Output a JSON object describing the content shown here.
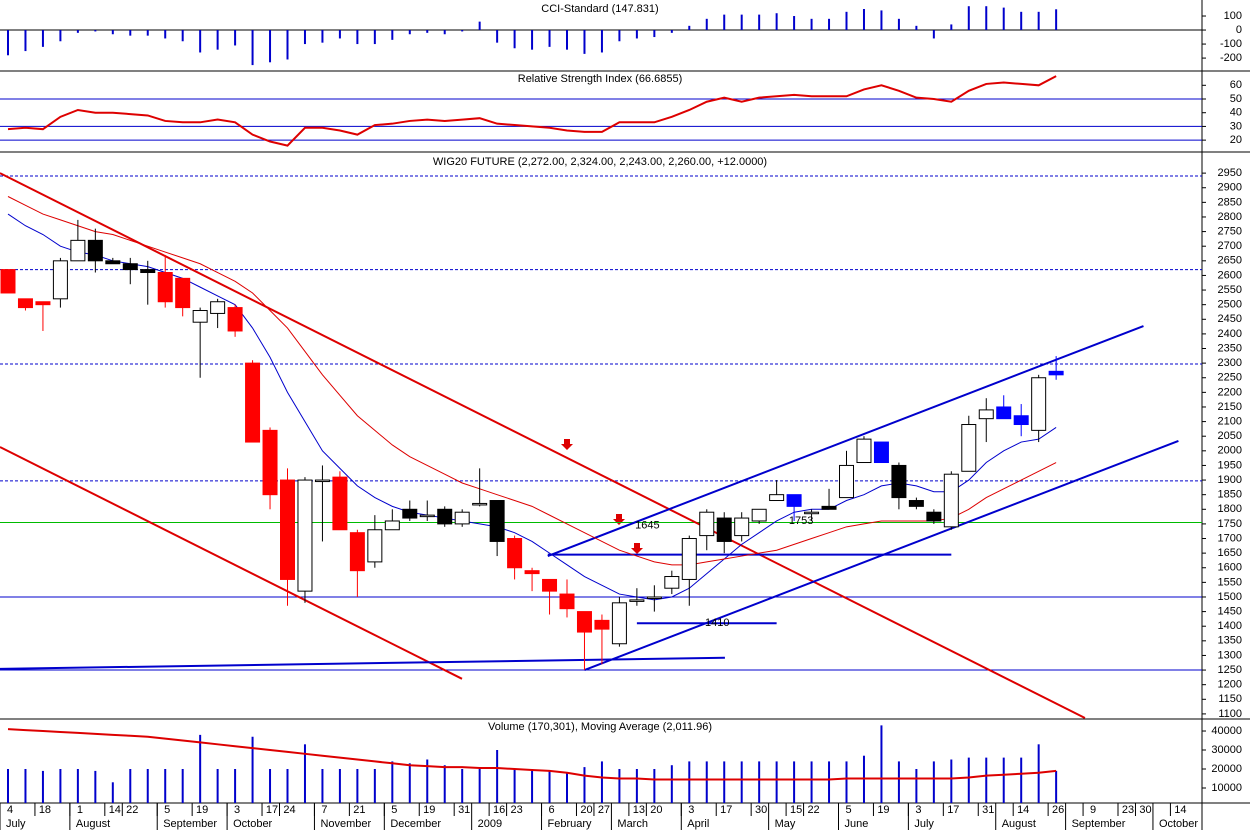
{
  "chart_data": [
    {
      "type": "bar",
      "title": "CCI-Standard (147.831)",
      "color": "#0000cc",
      "ylim": [
        -285,
        200
      ],
      "yticks": [
        100,
        0,
        -100,
        -200
      ],
      "hlines": [
        {
          "value": 0,
          "color": "#000000"
        }
      ],
      "values": [
        -180,
        -150,
        -120,
        -80,
        -20,
        -10,
        -30,
        -40,
        -40,
        -60,
        -80,
        -160,
        -140,
        -110,
        -250,
        -230,
        -210,
        -100,
        -90,
        -60,
        -100,
        -100,
        -70,
        -30,
        -20,
        -30,
        -10,
        60,
        -90,
        -130,
        -140,
        -120,
        -140,
        -170,
        -160,
        -80,
        -60,
        -50,
        -20,
        30,
        80,
        110,
        110,
        110,
        120,
        100,
        80,
        80,
        130,
        150,
        140,
        80,
        30,
        -60,
        40,
        170,
        170,
        160,
        130,
        130,
        148
      ]
    },
    {
      "type": "line",
      "title": "Relative Strength Index (66.6855)",
      "color": "#dd0000",
      "ylim": [
        12.8,
        69.7
      ],
      "yticks": [
        60,
        50,
        40,
        30,
        20
      ],
      "hlines": [
        {
          "value": 50,
          "color": "#0000cc"
        },
        {
          "value": 30,
          "color": "#0000cc"
        },
        {
          "value": 20,
          "color": "#0000cc"
        }
      ],
      "values": [
        28,
        29,
        28,
        37,
        42,
        40,
        40,
        39,
        38,
        34,
        33,
        33,
        35,
        33,
        24,
        19,
        16,
        29,
        29,
        27,
        24,
        31,
        32,
        34,
        35,
        34,
        35,
        36,
        32,
        31,
        30,
        29,
        27,
        26,
        26,
        33,
        33,
        33,
        37,
        42,
        48,
        51,
        48,
        51,
        52,
        53,
        52,
        52,
        52,
        57,
        60,
        56,
        51,
        50,
        48,
        56,
        61,
        62,
        61,
        60,
        66.7
      ]
    },
    {
      "type": "candlestick",
      "title": "WIG20 FUTURE (2,272.00, 2,324.00, 2,243.00, 2,260.00, +12.0000)",
      "xlim": [
        -0.458,
        68.35
      ],
      "xticks": [
        {
          "value": 0,
          "label": "4"
        },
        {
          "value": 2,
          "label": "18"
        },
        {
          "value": 4,
          "label": "1"
        },
        {
          "value": 6,
          "label": "14"
        },
        {
          "value": 7,
          "label": "22"
        },
        {
          "value": 9,
          "label": "5"
        },
        {
          "value": 11,
          "label": "19"
        },
        {
          "value": 13,
          "label": "3"
        },
        {
          "value": 15,
          "label": "17"
        },
        {
          "value": 16,
          "label": "24"
        },
        {
          "value": 18,
          "label": "7"
        },
        {
          "value": 20,
          "label": "21"
        },
        {
          "value": 22,
          "label": "5"
        },
        {
          "value": 24,
          "label": "19"
        },
        {
          "value": 26,
          "label": "31"
        },
        {
          "value": 28,
          "label": "16"
        },
        {
          "value": 29,
          "label": "23"
        },
        {
          "value": 31,
          "label": "6"
        },
        {
          "value": 33,
          "label": "20"
        },
        {
          "value": 34,
          "label": "27"
        },
        {
          "value": 36,
          "label": "13"
        },
        {
          "value": 37,
          "label": "20"
        },
        {
          "value": 39,
          "label": "3"
        },
        {
          "value": 41,
          "label": "17"
        },
        {
          "value": 43,
          "label": "30"
        },
        {
          "value": 45,
          "label": "15"
        },
        {
          "value": 46,
          "label": "22"
        },
        {
          "value": 48,
          "label": "5"
        },
        {
          "value": 50,
          "label": "19"
        },
        {
          "value": 52,
          "label": "3"
        },
        {
          "value": 54,
          "label": "17"
        },
        {
          "value": 56,
          "label": "31"
        },
        {
          "value": 58,
          "label": "14"
        },
        {
          "value": 60,
          "label": "26"
        },
        {
          "value": 62,
          "label": "9"
        },
        {
          "value": 64,
          "label": "23"
        },
        {
          "value": 65,
          "label": "30"
        },
        {
          "value": 67,
          "label": "14"
        }
      ],
      "month_labels": [
        {
          "value": 0,
          "label": "July"
        },
        {
          "value": 4,
          "label": "August"
        },
        {
          "value": 9,
          "label": "September"
        },
        {
          "value": 13,
          "label": "October"
        },
        {
          "value": 18,
          "label": "November"
        },
        {
          "value": 22,
          "label": "December"
        },
        {
          "value": 27,
          "label": "2009"
        },
        {
          "value": 31,
          "label": "February"
        },
        {
          "value": 35,
          "label": "March"
        },
        {
          "value": 39,
          "label": "April"
        },
        {
          "value": 44,
          "label": "May"
        },
        {
          "value": 48,
          "label": "June"
        },
        {
          "value": 52,
          "label": "July"
        },
        {
          "value": 57,
          "label": "August"
        },
        {
          "value": 61,
          "label": "September"
        },
        {
          "value": 66,
          "label": "October"
        }
      ],
      "ylim": [
        1086,
        3012
      ],
      "yticks": [
        2950,
        2900,
        2850,
        2800,
        2750,
        2700,
        2650,
        2600,
        2550,
        2500,
        2450,
        2400,
        2350,
        2300,
        2250,
        2200,
        2150,
        2100,
        2050,
        2000,
        1950,
        1900,
        1850,
        1800,
        1750,
        1700,
        1650,
        1600,
        1550,
        1500,
        1450,
        1400,
        1350,
        1300,
        1250,
        1200,
        1150,
        1100
      ],
      "open": [
        2620,
        2520,
        2510,
        2520,
        2650,
        2720,
        2650,
        2640,
        2620,
        2610,
        2590,
        2440,
        2470,
        2490,
        2300,
        2070,
        1900,
        1520,
        1900,
        1910,
        1720,
        1620,
        1730,
        1800,
        1780,
        1800,
        1750,
        1820,
        1830,
        1700,
        1590,
        1560,
        1510,
        1450,
        1420,
        1340,
        1490,
        1500,
        1530,
        1560,
        1710,
        1770,
        1710,
        1760,
        1830,
        1850,
        1790,
        1810,
        1840,
        1960,
        2030,
        1950,
        1830,
        1790,
        1740,
        1930,
        2110,
        2150,
        2120,
        2070,
        2272
      ],
      "high": [
        2620,
        2520,
        2510,
        2660,
        2790,
        2760,
        2660,
        2660,
        2650,
        2670,
        2590,
        2490,
        2520,
        2500,
        2310,
        2080,
        1940,
        1910,
        1950,
        1930,
        1730,
        1780,
        1800,
        1830,
        1830,
        1810,
        1800,
        1940,
        1830,
        1710,
        1600,
        1560,
        1560,
        1450,
        1440,
        1500,
        1530,
        1540,
        1590,
        1710,
        1800,
        1790,
        1790,
        1800,
        1900,
        1850,
        1800,
        1870,
        2000,
        2050,
        2030,
        1960,
        1840,
        1800,
        1930,
        2120,
        2180,
        2190,
        2160,
        2260,
        2324
      ],
      "low": [
        2540,
        2480,
        2410,
        2490,
        2650,
        2610,
        2640,
        2570,
        2500,
        2490,
        2460,
        2250,
        2420,
        2390,
        2030,
        1800,
        1470,
        1480,
        1690,
        1730,
        1500,
        1600,
        1730,
        1760,
        1760,
        1740,
        1740,
        1810,
        1640,
        1560,
        1520,
        1440,
        1430,
        1250,
        1270,
        1330,
        1470,
        1450,
        1510,
        1470,
        1660,
        1650,
        1690,
        1750,
        1830,
        1760,
        1760,
        1800,
        1840,
        1960,
        1960,
        1800,
        1800,
        1750,
        1730,
        1930,
        2030,
        2110,
        2050,
        2030,
        2243
      ],
      "close": [
        2540,
        2490,
        2500,
        2650,
        2720,
        2650,
        2640,
        2620,
        2610,
        2510,
        2490,
        2480,
        2510,
        2410,
        2030,
        1850,
        1560,
        1900,
        1900,
        1730,
        1590,
        1730,
        1760,
        1770,
        1780,
        1750,
        1790,
        1820,
        1690,
        1600,
        1580,
        1520,
        1460,
        1380,
        1390,
        1480,
        1490,
        1500,
        1570,
        1700,
        1790,
        1690,
        1770,
        1800,
        1850,
        1810,
        1790,
        1800,
        1950,
        2040,
        1960,
        1840,
        1810,
        1760,
        1920,
        2090,
        2140,
        2110,
        2090,
        2250,
        2260
      ],
      "colors": [
        "#ff0000",
        "#ff0000",
        "#ff0000",
        "#ffffff",
        "#ffffff",
        "#000000",
        "#000000",
        "#000000",
        "#000000",
        "#ff0000",
        "#ff0000",
        "#ffffff",
        "#ffffff",
        "#ff0000",
        "#ff0000",
        "#ff0000",
        "#ff0000",
        "#ffffff",
        "#ffffff",
        "#ff0000",
        "#ff0000",
        "#ffffff",
        "#ffffff",
        "#000000",
        "#ffffff",
        "#000000",
        "#ffffff",
        "#ffffff",
        "#000000",
        "#ff0000",
        "#ff0000",
        "#ff0000",
        "#ff0000",
        "#ff0000",
        "#ff0000",
        "#ffffff",
        "#ffffff",
        "#ffffff",
        "#ffffff",
        "#ffffff",
        "#ffffff",
        "#000000",
        "#ffffff",
        "#ffffff",
        "#ffffff",
        "#0000ff",
        "#ffffff",
        "#000000",
        "#ffffff",
        "#ffffff",
        "#0000ff",
        "#000000",
        "#000000",
        "#000000",
        "#ffffff",
        "#ffffff",
        "#ffffff",
        "#0000ff",
        "#0000ff",
        "#ffffff",
        "#0000ff"
      ],
      "lines": [
        {
          "color": "#0000cc",
          "values": [
            2810,
            2770,
            2740,
            2700,
            2680,
            2670,
            2650,
            2640,
            2630,
            2610,
            2590,
            2560,
            2530,
            2500,
            2420,
            2320,
            2200,
            2100,
            2000,
            1940,
            1880,
            1840,
            1810,
            1790,
            1780,
            1770,
            1760,
            1750,
            1740,
            1720,
            1690,
            1650,
            1610,
            1570,
            1540,
            1510,
            1500,
            1490,
            1500,
            1530,
            1580,
            1630,
            1680,
            1720,
            1760,
            1790,
            1800,
            1800,
            1830,
            1850,
            1880,
            1890,
            1880,
            1860,
            1860,
            1900,
            1960,
            2000,
            2030,
            2040,
            2080
          ]
        },
        {
          "color": "#dd0000",
          "values": [
            2870,
            2840,
            2810,
            2790,
            2770,
            2750,
            2740,
            2720,
            2700,
            2680,
            2660,
            2640,
            2610,
            2580,
            2540,
            2480,
            2420,
            2340,
            2260,
            2190,
            2120,
            2070,
            2020,
            1980,
            1950,
            1920,
            1890,
            1870,
            1850,
            1830,
            1810,
            1780,
            1750,
            1720,
            1690,
            1660,
            1640,
            1620,
            1610,
            1610,
            1620,
            1630,
            1640,
            1650,
            1660,
            1680,
            1700,
            1720,
            1740,
            1750,
            1760,
            1760,
            1760,
            1760,
            1770,
            1800,
            1840,
            1870,
            1900,
            1930,
            1960
          ]
        }
      ],
      "hlines": [
        {
          "value": 2940,
          "color": "#0000cc",
          "dashed": true
        },
        {
          "value": 2620,
          "color": "#0000cc",
          "dashed": true
        },
        {
          "value": 2297,
          "color": "#0000cc",
          "dashed": true
        },
        {
          "value": 1897,
          "color": "#0000cc",
          "dashed": true
        },
        {
          "value": 1755,
          "color": "#00bb00"
        },
        {
          "value": 1500,
          "color": "#0000cc"
        },
        {
          "value": 1250,
          "color": "#0000cc"
        }
      ],
      "trendlines": [
        {
          "color": "#dd0000",
          "x": [
            -0.46,
            61.65
          ],
          "y": [
            2950,
            1086
          ]
        },
        {
          "color": "#dd0000",
          "x": [
            -0.46,
            25.99
          ],
          "y": [
            2013,
            1220
          ]
        },
        {
          "color": "#0000cc",
          "x": [
            30.9,
            65.0
          ],
          "y": [
            1640,
            2427
          ]
        },
        {
          "color": "#0000cc",
          "x": [
            33.0,
            67.0
          ],
          "y": [
            1250,
            2034
          ]
        },
        {
          "color": "#0000cc",
          "x": [
            -0.46,
            41.04
          ],
          "y": [
            1254,
            1292
          ]
        },
        {
          "color": "#0000cc",
          "x": [
            30.9,
            54.0
          ],
          "y": [
            1645,
            1645
          ]
        },
        {
          "color": "#0000cc",
          "x": [
            36.0,
            44.0
          ],
          "y": [
            1410,
            1410
          ]
        }
      ],
      "annotations": [
        {
          "text": "1645",
          "x": 36.6,
          "y": 1745
        },
        {
          "text": "1753",
          "x": 45.4,
          "y": 1760
        },
        {
          "text": "1410",
          "x": 40.6,
          "y": 1410
        }
      ]
    },
    {
      "type": "bar",
      "title": "Volume (170,301), Moving Average (2,011.96)",
      "color": "#0000cc",
      "ylim": [
        2100,
        45800
      ],
      "yticks": [
        40000,
        30000,
        20000,
        10000
      ],
      "values": [
        20000,
        20000,
        19000,
        20000,
        20000,
        19000,
        13000,
        20000,
        20000,
        20000,
        20000,
        38000,
        20000,
        20000,
        37000,
        20000,
        20000,
        33000,
        20000,
        20000,
        20000,
        20000,
        24000,
        23000,
        25000,
        22000,
        20000,
        20000,
        30000,
        20000,
        20000,
        19000,
        18000,
        21000,
        24000,
        20000,
        20000,
        20000,
        22000,
        24000,
        24000,
        24000,
        24000,
        24000,
        24000,
        24000,
        24000,
        24000,
        24000,
        27000,
        43000,
        24000,
        20000,
        24000,
        25000,
        26000,
        26000,
        26000,
        26000,
        33000,
        19000
      ],
      "line": {
        "color": "#dd0000",
        "values": [
          41000,
          40500,
          40000,
          39500,
          39000,
          38500,
          38000,
          37500,
          37000,
          36000,
          35000,
          34000,
          33000,
          32000,
          31000,
          30000,
          29000,
          28000,
          27000,
          26000,
          25000,
          24000,
          23000,
          22000,
          21500,
          21000,
          21000,
          20500,
          20500,
          20000,
          19500,
          19000,
          18000,
          16500,
          15500,
          15000,
          15000,
          14500,
          14500,
          14500,
          14500,
          14500,
          14500,
          14500,
          14500,
          14500,
          14500,
          14500,
          15000,
          15000,
          15000,
          15000,
          15000,
          15000,
          15000,
          15500,
          16500,
          17000,
          17500,
          18000,
          19000
        ]
      }
    }
  ]
}
